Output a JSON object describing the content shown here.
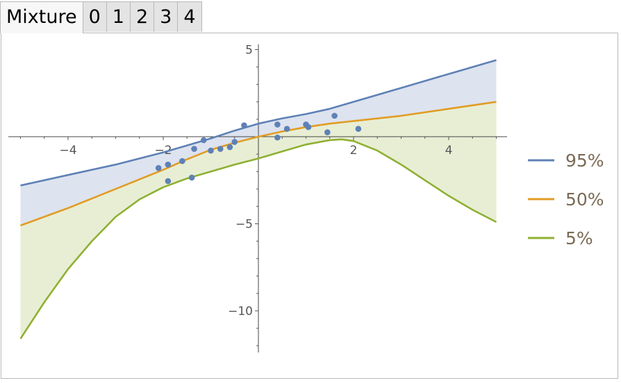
{
  "tabs": [
    {
      "label": "Mixture",
      "active": true
    },
    {
      "label": "0",
      "active": false
    },
    {
      "label": "1",
      "active": false
    },
    {
      "label": "2",
      "active": false
    },
    {
      "label": "3",
      "active": false
    },
    {
      "label": "4",
      "active": false
    }
  ],
  "chart_data": {
    "type": "line",
    "title": "",
    "xlabel": "",
    "ylabel": "",
    "xlim": [
      -5,
      5
    ],
    "ylim": [
      -12.3,
      5.3
    ],
    "x_ticks": [
      -4,
      -2,
      2,
      4
    ],
    "x_tick_labels": [
      "−4",
      "−2",
      "2",
      "4"
    ],
    "y_ticks": [
      5,
      -5,
      -10
    ],
    "y_tick_labels": [
      "5",
      "−5",
      "−10"
    ],
    "legend_position": "right",
    "grid": false,
    "fill_between_series": true,
    "series": [
      {
        "name": "95%",
        "color": "#5e81b5",
        "fill": "#dde3ef",
        "x": [
          -5,
          -4,
          -3,
          -2,
          -1.5,
          -1,
          -0.5,
          0,
          0.5,
          1,
          1.5,
          2,
          3,
          4,
          5
        ],
        "y": [
          -2.8,
          -2.2,
          -1.6,
          -0.9,
          -0.5,
          -0.1,
          0.35,
          0.75,
          1.05,
          1.3,
          1.6,
          2.0,
          2.8,
          3.6,
          4.4
        ]
      },
      {
        "name": "50%",
        "color": "#e19c24",
        "fill": "#e8eed4",
        "x": [
          -5,
          -4,
          -3,
          -2,
          -1.5,
          -1,
          -0.5,
          0,
          0.5,
          1,
          1.5,
          2,
          3,
          4,
          5
        ],
        "y": [
          -5.1,
          -4.1,
          -3.0,
          -1.9,
          -1.3,
          -0.75,
          -0.35,
          0.0,
          0.3,
          0.55,
          0.75,
          0.9,
          1.2,
          1.6,
          2.0
        ]
      },
      {
        "name": "5%",
        "color": "#8fb032",
        "x": [
          -5,
          -4.5,
          -4,
          -3.5,
          -3,
          -2.5,
          -2,
          -1.5,
          -1,
          -0.5,
          0,
          0.5,
          1,
          1.5,
          1.75,
          2,
          2.5,
          3,
          3.5,
          4,
          4.5,
          5
        ],
        "y": [
          -11.6,
          -9.5,
          -7.6,
          -6.0,
          -4.6,
          -3.6,
          -2.9,
          -2.4,
          -2.0,
          -1.6,
          -1.25,
          -0.85,
          -0.45,
          -0.2,
          -0.15,
          -0.25,
          -0.8,
          -1.6,
          -2.5,
          -3.4,
          -4.2,
          -4.9
        ]
      }
    ],
    "points": {
      "color": "#5e81b5",
      "x": [
        -2.1,
        -1.9,
        -1.9,
        -1.6,
        -1.4,
        -1.35,
        -1.15,
        -1.0,
        -0.8,
        -0.6,
        -0.5,
        -0.3,
        0.4,
        0.4,
        0.6,
        1.0,
        1.05,
        1.45,
        1.6,
        2.1
      ],
      "y": [
        -1.8,
        -1.6,
        -2.55,
        -1.4,
        -2.35,
        -0.7,
        -0.2,
        -0.8,
        -0.7,
        -0.6,
        -0.3,
        0.65,
        0.7,
        -0.05,
        0.45,
        0.7,
        0.55,
        0.25,
        1.2,
        0.45
      ]
    }
  }
}
